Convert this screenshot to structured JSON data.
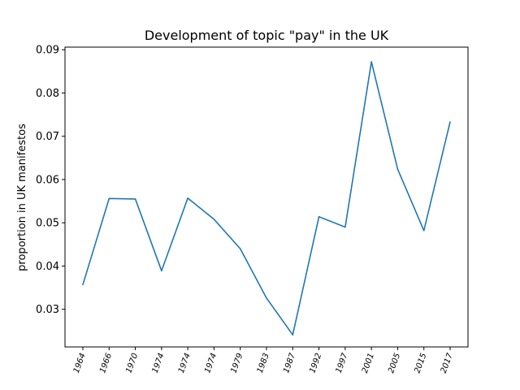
{
  "chart_data": {
    "type": "line",
    "title": "Development of topic \"pay\" in the UK",
    "xlabel": "",
    "ylabel": "proportion in UK manifestos",
    "categories": [
      "1964",
      "1966",
      "1970",
      "1974",
      "1974",
      "1974",
      "1979",
      "1983",
      "1987",
      "1992",
      "1997",
      "2001",
      "2005",
      "2015",
      "2017"
    ],
    "values": [
      0.0357,
      0.0556,
      0.0555,
      0.0389,
      0.0557,
      0.0508,
      0.044,
      0.0326,
      0.0241,
      0.0514,
      0.049,
      0.0872,
      0.0624,
      0.0482,
      0.0733
    ],
    "ylim": [
      0.0213,
      0.0906
    ],
    "yticks": [
      "0.03",
      "0.04",
      "0.05",
      "0.06",
      "0.07",
      "0.08",
      "0.09"
    ],
    "ytick_values": [
      0.03,
      0.04,
      0.05,
      0.06,
      0.07,
      0.08,
      0.09
    ],
    "grid": false,
    "line_color": "#1f77b4"
  }
}
